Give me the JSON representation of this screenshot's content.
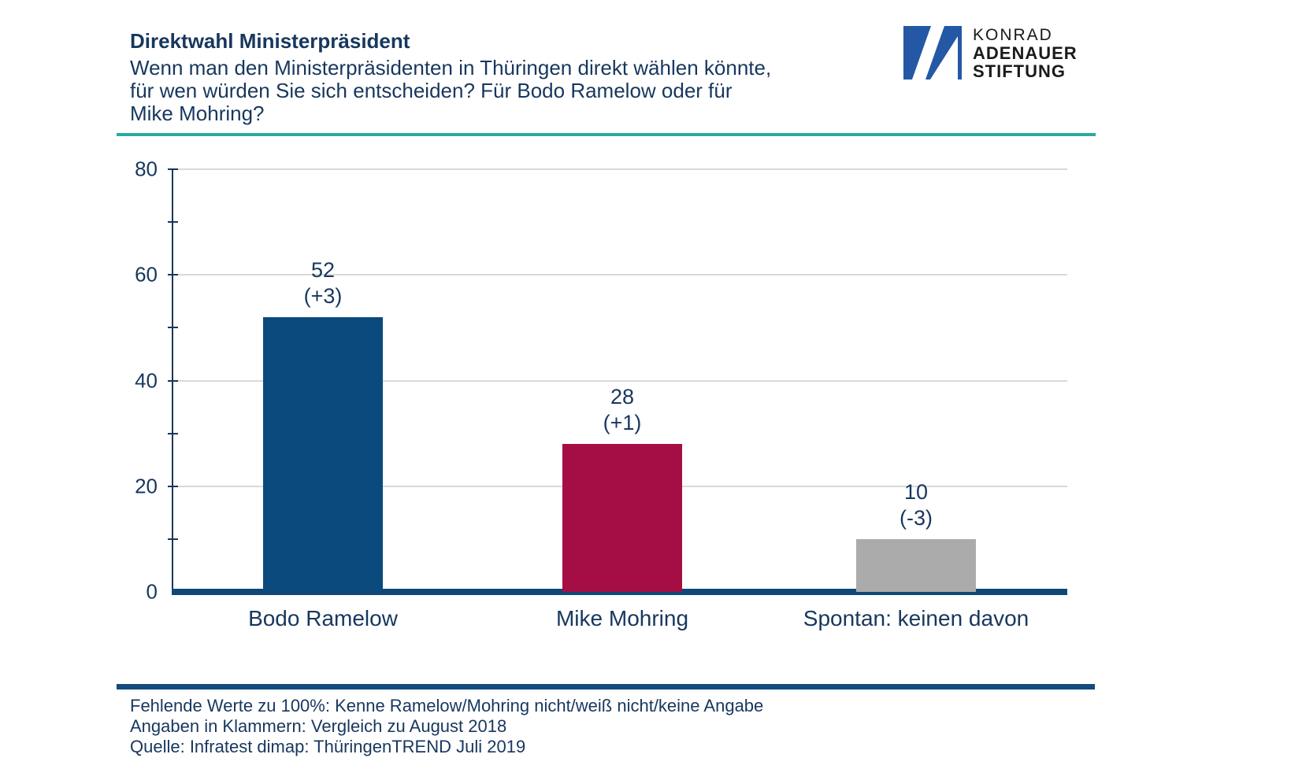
{
  "header": {
    "title": "Direktwahl Ministerpräsident",
    "subtitle_lines": [
      "Wenn man den Ministerpräsidenten in Thüringen direkt wählen könnte,",
      "für wen würden Sie sich entscheiden? Für Bodo Ramelow oder für",
      "Mike Mohring?"
    ]
  },
  "logo": {
    "name": "konrad-adenauer-stiftung-logo",
    "line1": "KONRAD",
    "line2": "ADENAUER",
    "line3": "STIFTUNG",
    "square_color": "#2458A4",
    "mark_color": "#ffffff"
  },
  "chart_data": {
    "type": "bar",
    "title": "Direktwahl Ministerpräsident",
    "categories": [
      "Bodo Ramelow",
      "Mike Mohring",
      "Spontan: keinen davon"
    ],
    "values": [
      52,
      28,
      10
    ],
    "change_labels": [
      "(+3)",
      "(+1)",
      "(-3)"
    ],
    "bar_colors": [
      "#0A4A7C",
      "#A50E45",
      "#ABABAB"
    ],
    "xlabel": "",
    "ylabel": "",
    "ylim": [
      0,
      80
    ],
    "yticks": [
      0,
      20,
      40,
      60,
      80
    ],
    "minor_yticks": [
      10,
      30,
      50,
      70
    ],
    "grid": "horizontal gridlines at major ticks",
    "legend": "none"
  },
  "footer": {
    "lines": [
      "Fehlende Werte zu 100%: Kenne Ramelow/Mohring nicht/weiß nicht/keine Angabe",
      "Angaben in Klammern: Vergleich zu August 2018",
      "Quelle: Infratest dimap: ThüringenTREND Juli 2019"
    ]
  },
  "colors": {
    "text_navy": "#17375E",
    "axis_navy": "#17375E",
    "baseline_blue": "#0F4878",
    "gridline_gray": "#D9D9D9",
    "teal_rule": "#2BA9A1",
    "footer_rule": "#124B7D"
  }
}
